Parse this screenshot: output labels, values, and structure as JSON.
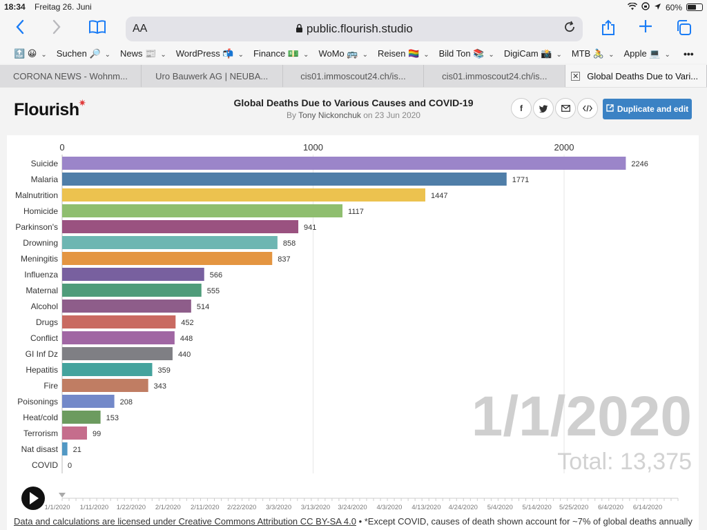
{
  "statusbar": {
    "time": "18:34",
    "date": "Freitag 26. Juni",
    "battery": "60%",
    "battery_level": 0.6
  },
  "browser": {
    "aa": "AA",
    "url": "public.flourish.studio",
    "accent": "#1a7cf5"
  },
  "bookmarks": [
    {
      "label": "🔝 😀"
    },
    {
      "label": "Suchen 🔎"
    },
    {
      "label": "News 📰"
    },
    {
      "label": "WordPress 📬"
    },
    {
      "label": "Finance 💵"
    },
    {
      "label": "WoMo 🚌"
    },
    {
      "label": "Reisen 🏳️‍🌈"
    },
    {
      "label": "Bild Ton 📚"
    },
    {
      "label": "DigiCam 📸"
    },
    {
      "label": "MTB 🚴"
    },
    {
      "label": "Apple 💻"
    }
  ],
  "tabs": [
    {
      "label": "CORONA NEWS - Wohnm...",
      "active": false
    },
    {
      "label": "Uro Bauwerk AG | NEUBA...",
      "active": false
    },
    {
      "label": "cis01.immoscout24.ch/is...",
      "active": false
    },
    {
      "label": "cis01.immoscout24.ch/is...",
      "active": false
    },
    {
      "label": "Global Deaths Due to Vari...",
      "active": true
    }
  ],
  "flourish": {
    "logo": "Flourish",
    "title": "Global Deaths Due to Various Causes and COVID-19",
    "by": "By",
    "author": "Tony Nickonchuk",
    "on": "on",
    "date": "23 Jun 2020",
    "duplicate_label": "Duplicate and edit",
    "brand_color": "#3b82c4"
  },
  "chart_data": {
    "type": "bar",
    "orientation": "horizontal",
    "title": "Global Deaths Due to Various Causes and COVID-19",
    "categories": [
      "Suicide",
      "Malaria",
      "Malnutrition",
      "Homicide",
      "Parkinson's",
      "Drowning",
      "Meningitis",
      "Influenza",
      "Maternal",
      "Alcohol",
      "Drugs",
      "Conflict",
      "GI Inf Dz",
      "Hepatitis",
      "Fire",
      "Poisonings",
      "Heat/cold",
      "Terrorism",
      "Nat disast",
      "COVID"
    ],
    "values": [
      2246,
      1771,
      1447,
      1117,
      941,
      858,
      837,
      566,
      555,
      514,
      452,
      448,
      440,
      359,
      343,
      208,
      153,
      99,
      21,
      0
    ],
    "colors": [
      "#9b85c9",
      "#4f7ea8",
      "#ecc24f",
      "#8fbe6f",
      "#9a5280",
      "#6db6b2",
      "#e49541",
      "#78609f",
      "#4f9c7a",
      "#8e5d8a",
      "#c96a61",
      "#a066a3",
      "#7f7f84",
      "#44a39d",
      "#c07d63",
      "#7389c9",
      "#6c9b5f",
      "#c56d8c",
      "#5298c4",
      "#9e9e9e"
    ],
    "xticks": [
      0,
      1000,
      2000
    ],
    "xlim": [
      0,
      2400
    ],
    "grid": true,
    "date_label": "1/1/2020",
    "total_label": "Total: 13,375",
    "timeline_dates": [
      "1/1/2020",
      "1/11/2020",
      "1/22/2020",
      "2/1/2020",
      "2/11/2020",
      "2/22/2020",
      "3/3/2020",
      "3/13/2020",
      "3/24/2020",
      "4/3/2020",
      "4/13/2020",
      "4/24/2020",
      "5/4/2020",
      "5/14/2020",
      "5/25/2020",
      "6/4/2020",
      "6/14/2020"
    ]
  },
  "footer": {
    "license": "Data and calculations are licensed under Creative Commons Attribution CC BY-SA 4.0",
    "separator": " • ",
    "note": "*Except COVID, causes of death shown account for ~7% of global deaths annually"
  },
  "icons": [
    "back-icon",
    "forward-icon",
    "bookmarks-icon",
    "lock-icon",
    "reload-icon",
    "share-icon",
    "new-tab-icon",
    "tabs-icon",
    "more-icon",
    "facebook-icon",
    "twitter-icon",
    "email-icon",
    "embed-icon",
    "external-icon",
    "play-icon"
  ]
}
